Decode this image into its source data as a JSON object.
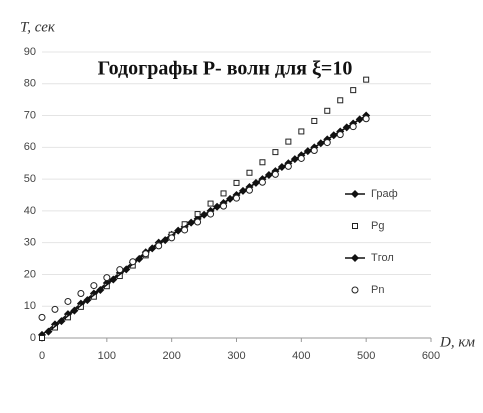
{
  "chart_data": {
    "type": "scatter",
    "title": "Годографы P- волн для ξ=10",
    "x_label": "D, км",
    "y_label": "T, сек",
    "xlim": [
      0,
      600
    ],
    "xticks": [
      0,
      100,
      200,
      300,
      400,
      500,
      600
    ],
    "ylim": [
      0,
      90
    ],
    "yticks": [
      0,
      10,
      20,
      30,
      40,
      50,
      60,
      70,
      80,
      90
    ],
    "grid": true,
    "legend": "right",
    "series": [
      {
        "name": "Граф",
        "color": "#111111",
        "marker": "diamond",
        "line": true,
        "x": [
          0,
          20,
          40,
          60,
          80,
          100,
          120,
          140,
          160,
          180,
          200,
          220,
          240,
          260,
          280,
          300,
          320,
          340,
          360,
          380,
          400,
          420,
          440,
          460,
          480,
          500
        ],
        "values": [
          1,
          4.3,
          7.5,
          10.8,
          14,
          17.3,
          20.5,
          23.8,
          27,
          30,
          32.5,
          35,
          37.5,
          40,
          42.5,
          45,
          47.5,
          50,
          52.5,
          55,
          57.5,
          60,
          62.5,
          65,
          67.5,
          70
        ]
      },
      {
        "name": "Pg",
        "color": "#222222",
        "marker": "square",
        "line": false,
        "x": [
          0,
          20,
          40,
          60,
          80,
          100,
          120,
          140,
          160,
          180,
          200,
          220,
          240,
          260,
          280,
          300,
          320,
          340,
          360,
          380,
          400,
          420,
          440,
          460,
          480,
          500
        ],
        "values": [
          0,
          3.3,
          6.5,
          9.8,
          13,
          16.3,
          19.5,
          22.8,
          26,
          29.3,
          32.5,
          35.8,
          39,
          42.3,
          45.5,
          48.8,
          52,
          55.3,
          58.5,
          61.8,
          65,
          68.3,
          71.5,
          74.8,
          78,
          81.3
        ]
      },
      {
        "name": "Тгол",
        "color": "#111111",
        "marker": "diamond",
        "line": true,
        "x": [
          10,
          30,
          50,
          70,
          90,
          110,
          130,
          150,
          170,
          190,
          210,
          230,
          250,
          270,
          290,
          310,
          330,
          350,
          370,
          390,
          410,
          430,
          450,
          470,
          490
        ],
        "values": [
          2,
          5.3,
          8.6,
          11.9,
          15.1,
          18.4,
          21.6,
          24.9,
          28.2,
          30.8,
          33.8,
          36.3,
          38.8,
          41.3,
          43.8,
          46.3,
          48.8,
          51.3,
          53.8,
          56.3,
          58.8,
          61.3,
          63.8,
          66.3,
          68.8
        ]
      },
      {
        "name": "Pn",
        "color": "#222222",
        "marker": "circle",
        "line": false,
        "x": [
          0,
          20,
          40,
          60,
          80,
          100,
          120,
          140,
          160,
          180,
          200,
          220,
          240,
          260,
          280,
          300,
          320,
          340,
          360,
          380,
          400,
          420,
          440,
          460,
          480,
          500
        ],
        "values": [
          6.5,
          9,
          11.5,
          14,
          16.5,
          19,
          21.5,
          24,
          26.5,
          29,
          31.5,
          34,
          36.5,
          39,
          41.5,
          44,
          46.5,
          49,
          51.5,
          54,
          56.5,
          59,
          61.5,
          64,
          66.5,
          69
        ]
      }
    ]
  }
}
